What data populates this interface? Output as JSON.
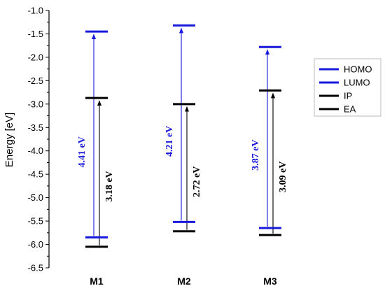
{
  "chart_data": {
    "type": "energy-level",
    "ylabel": "Energy [eV]",
    "ylim": [
      -6.5,
      -1.0
    ],
    "yticks": [
      "-1.0",
      "-1.5",
      "-2.0",
      "-2.5",
      "-3.0",
      "-3.5",
      "-4.0",
      "-4.5",
      "-5.0",
      "-5.5",
      "-6.0",
      "-6.5"
    ],
    "categories": [
      "M1",
      "M2",
      "M3"
    ],
    "series": [
      {
        "name": "HOMO",
        "color": "#1a1adc",
        "values": [
          -5.85,
          -5.52,
          -5.65
        ]
      },
      {
        "name": "LUMO",
        "color": "#1a1adc",
        "values": [
          -1.45,
          -1.32,
          -1.78
        ]
      },
      {
        "name": "IP",
        "color": "#000000",
        "values": [
          -6.05,
          -5.72,
          -5.8
        ]
      },
      {
        "name": "EA",
        "color": "#000000",
        "values": [
          -2.87,
          -3.0,
          -2.71
        ]
      }
    ],
    "gaps": [
      {
        "category": "M1",
        "optical_label": "4.41 eV",
        "electrochemical_label": "3.18 eV"
      },
      {
        "category": "M2",
        "optical_label": "4.21 eV",
        "electrochemical_label": "2.72 eV"
      },
      {
        "category": "M3",
        "optical_label": "3.87 eV",
        "electrochemical_label": "3.09 eV"
      }
    ],
    "legend": {
      "position": "right",
      "entries": [
        "HOMO",
        "LUMO",
        "IP",
        "EA"
      ]
    },
    "grid": false
  }
}
